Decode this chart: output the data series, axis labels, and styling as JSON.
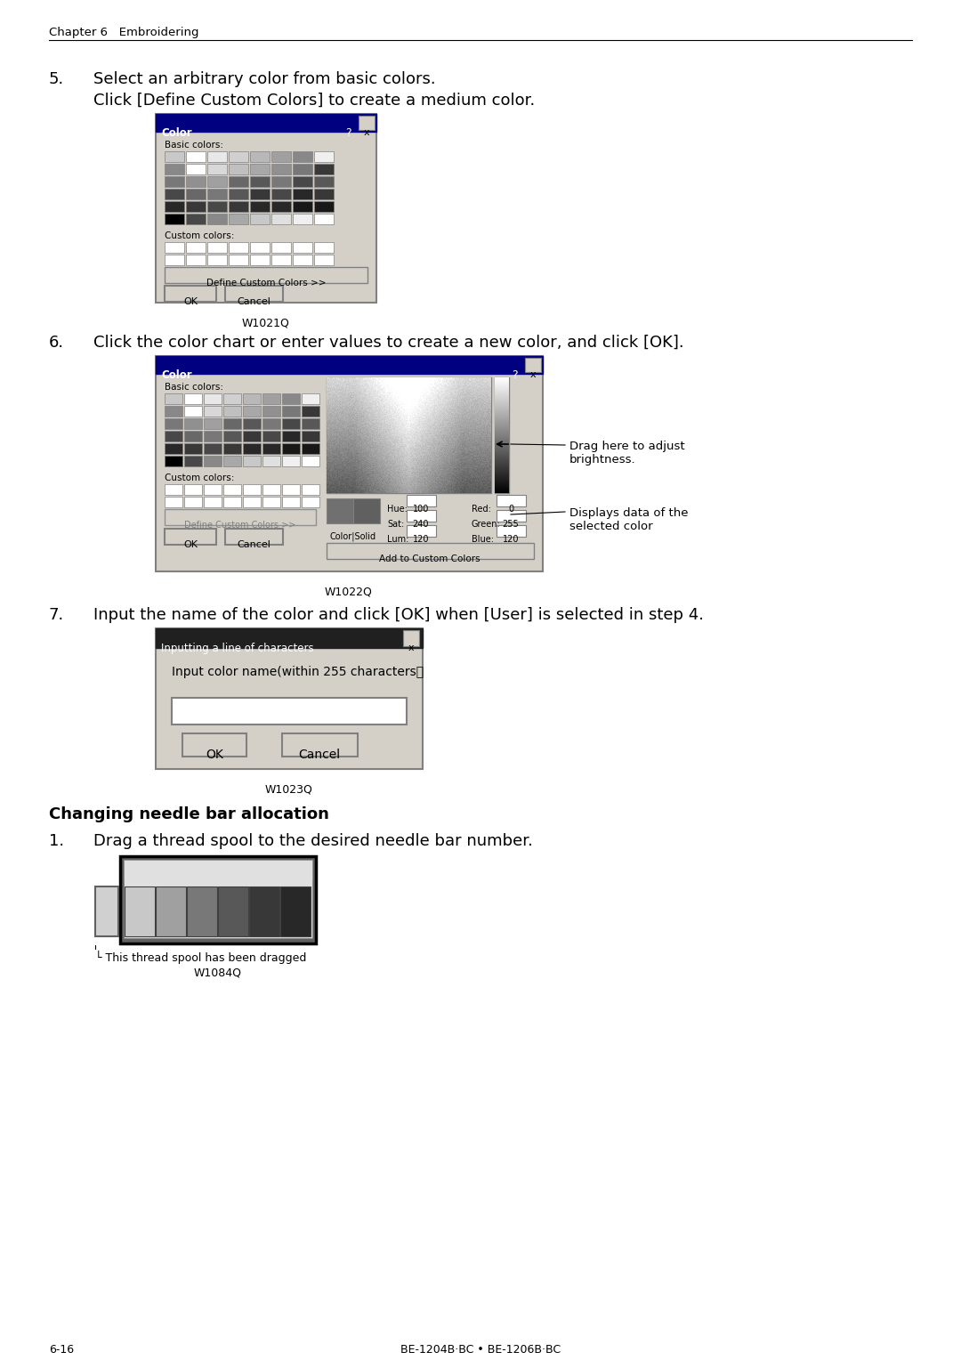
{
  "page_bg": "#ffffff",
  "header_text": "Chapter 6   Embroidering",
  "footer_left": "6-16",
  "footer_center": "BE-1204B·BC • BE-1206B·BC",
  "step5_number": "5.",
  "step5_line1": "Select an arbitrary color from basic colors.",
  "step5_line2": "Click [Define Custom Colors] to create a medium color.",
  "step5_caption": "W1021Q",
  "step6_number": "6.",
  "step6_line1": "Click the color chart or enter values to create a new color, and click [OK].",
  "step6_caption": "W1022Q",
  "step6_annotation1": "Drag here to adjust\nbrightness.",
  "step6_annotation2": "Displays data of the\nselected color",
  "step7_number": "7.",
  "step7_line1": "Input the name of the color and click [OK] when [User] is selected in step 4.",
  "step7_caption": "W1023Q",
  "section_title": "Changing needle bar allocation",
  "needle_number": "1.",
  "needle_line1": "Drag a thread spool to the desired needle bar number.",
  "needle_caption": "W1084Q",
  "needle_annotation": "This thread spool has been dragged",
  "text_color": "#000000",
  "dialog_bg": "#d4d0c8",
  "dialog_title_bg": "#000080",
  "dialog_title_fg": "#ffffff"
}
